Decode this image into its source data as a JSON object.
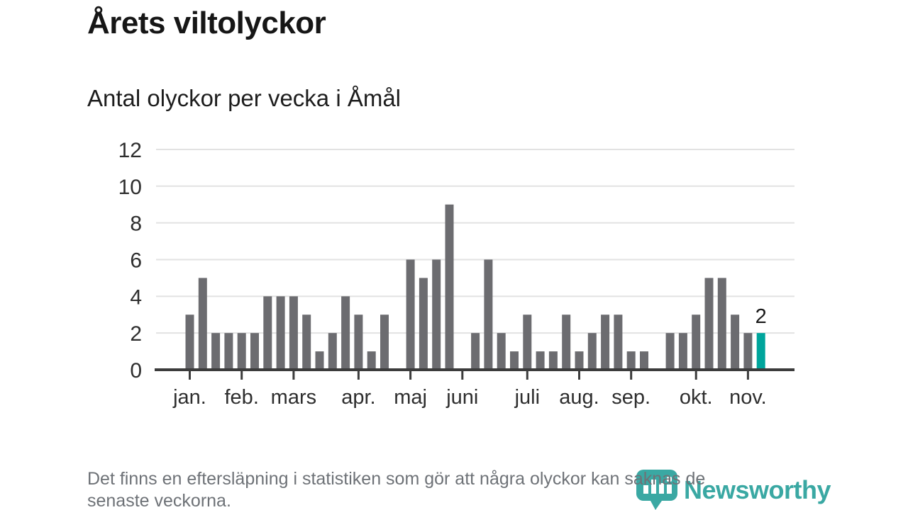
{
  "header": {
    "title": "Årets viltolyckor",
    "subtitle": "Antal olyckor per vecka i Åmål"
  },
  "chart_data": {
    "type": "bar",
    "title": "Årets viltolyckor",
    "subtitle": "Antal olyckor per vecka i Åmål",
    "x_unit": "vecka",
    "values": [
      3,
      5,
      2,
      2,
      2,
      2,
      4,
      4,
      4,
      3,
      1,
      2,
      4,
      3,
      1,
      3,
      0,
      6,
      5,
      6,
      9,
      0,
      2,
      6,
      2,
      1,
      3,
      1,
      1,
      3,
      1,
      2,
      3,
      3,
      1,
      1,
      0,
      2,
      2,
      3,
      5,
      5,
      3,
      2,
      2
    ],
    "month_ticks": [
      {
        "label": "jan.",
        "week_index": 0
      },
      {
        "label": "feb.",
        "week_index": 4
      },
      {
        "label": "mars",
        "week_index": 8
      },
      {
        "label": "apr.",
        "week_index": 13
      },
      {
        "label": "maj",
        "week_index": 17
      },
      {
        "label": "juni",
        "week_index": 21
      },
      {
        "label": "juli",
        "week_index": 26
      },
      {
        "label": "aug.",
        "week_index": 30
      },
      {
        "label": "sep.",
        "week_index": 34
      },
      {
        "label": "okt.",
        "week_index": 39
      },
      {
        "label": "nov.",
        "week_index": 43
      }
    ],
    "yticks": [
      0,
      2,
      4,
      6,
      8,
      10,
      12
    ],
    "ylim": [
      0,
      12
    ],
    "grid": true,
    "legend": "none",
    "bar_color": "#6c6c70",
    "highlight": {
      "index": 44,
      "value": 2,
      "label": "2",
      "color": "#00a59c"
    },
    "colors": {
      "grid": "#e2e2e2",
      "axis": "#3c3c3c",
      "axis_text": "#2e2e2e",
      "value_label": "#1a1a1a"
    }
  },
  "footer": {
    "note_lines": [
      "Det finns en eftersläpning i statistiken som gör att några olyckor kan saknas de",
      "senaste veckorna."
    ],
    "logo_text": "Newsworthy",
    "logo_color": "#3aa8a3"
  }
}
